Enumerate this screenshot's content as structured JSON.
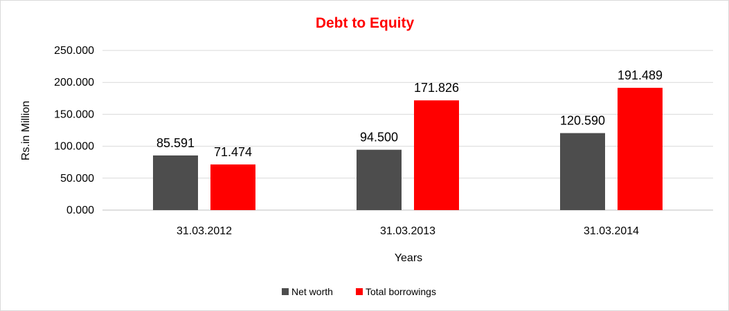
{
  "chart_data": {
    "type": "bar",
    "title": "Debt to Equity",
    "xlabel": "Years",
    "ylabel": "Rs.in Million",
    "categories": [
      "31.03.2012",
      "31.03.2013",
      "31.03.2014"
    ],
    "series": [
      {
        "name": "Net worth",
        "values": [
          85.591,
          94.5,
          120.59
        ],
        "labels": [
          "85.591",
          "94.500",
          "120.590"
        ],
        "color": "#4d4d4d"
      },
      {
        "name": "Total borrowings",
        "values": [
          71.474,
          171.826,
          191.489
        ],
        "labels": [
          "71.474",
          "171.826",
          "191.489"
        ],
        "color": "#ff0000"
      }
    ],
    "ylim": [
      0,
      250
    ],
    "yticks": [
      0,
      50,
      100,
      150,
      200,
      250
    ],
    "ytick_labels": [
      "0.000",
      "50.000",
      "100.000",
      "150.000",
      "200.000",
      "250.000"
    ],
    "grid": true,
    "legend_position": "bottom",
    "title_color": "#ff0000"
  }
}
